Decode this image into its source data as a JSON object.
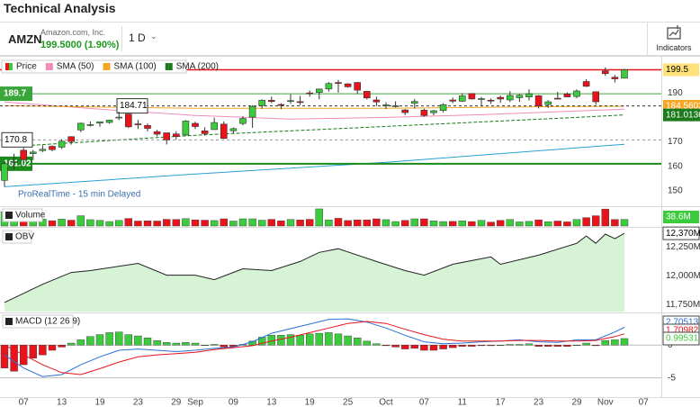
{
  "page": {
    "title": "Technical Analysis",
    "symbol": "AMZN",
    "company": "Amazon.com, Inc.",
    "price": "199.5000 (1.90%)",
    "interval": "1 D",
    "indicators_button": "Indicators",
    "source_note": "ProRealTime - 15 min Delayed"
  },
  "chart_data": [
    {
      "type": "candlestick",
      "categories": [
        null,
        null,
        "07",
        null,
        null,
        null,
        "13",
        null,
        null,
        null,
        "19",
        null,
        null,
        null,
        "23",
        null,
        null,
        null,
        "29",
        null,
        "Sep",
        null,
        null,
        null,
        "09",
        null,
        null,
        null,
        "13",
        null,
        null,
        null,
        "19",
        null,
        null,
        null,
        "25",
        null,
        null,
        null,
        "Oct",
        null,
        null,
        null,
        "07",
        null,
        null,
        null,
        "11",
        null,
        null,
        null,
        "17",
        null,
        null,
        null,
        "23",
        null,
        null,
        null,
        "29",
        null,
        null,
        "Nov",
        null,
        null,
        null,
        "07"
      ],
      "candles": {
        "name": "Price",
        "up_color": "#3ccb3c",
        "down_color": "#e8141b",
        "open": [
          154.21,
          161.71,
          166.55,
          165.17,
          166.4,
          168.14,
          167.81,
          172.11,
          174.86,
          177.04,
          177.64,
          177.92,
          179.92,
          181.38,
          177.34,
          176.7,
          174.15,
          173.69,
          173.22,
          172.78,
          177.55,
          174.48,
          175.0,
          177.24,
          174.53,
          177.49,
          180.1,
          184.8,
          187.0,
          185.29,
          186.85,
          186.45,
          190.04,
          190.23,
          191.64,
          194.27,
          193.75,
          194.31,
          190.68,
          187.14,
          184.9,
          184.44,
          183.05,
          185.75,
          182.95,
          181.92,
          182.82,
          187.13,
          186.63,
          189.78,
          187.63,
          187.05,
          188.22,
          187.15,
          188.05,
          188.35,
          188.85,
          185.25,
          187.85,
          189.57,
          188.58,
          194.7,
          190.51,
          199.0,
          196.45,
          196.04,
          null,
          null
        ],
        "high": [
          162.04,
          165.08,
          167.58,
          166.69,
          168.55,
          168.55,
          171.04,
          172.28,
          177.91,
          178.34,
          178.3,
          179.01,
          182.39,
          181.47,
          178.97,
          177.47,
          174.89,
          173.69,
          174.29,
          178.9,
          178.26,
          175.98,
          179.88,
          178.38,
          175.85,
          180.5,
          184.99,
          187.41,
          188.5,
          185.81,
          189.45,
          188.8,
          190.99,
          191.84,
          194.45,
          195.37,
          193.95,
          194.53,
          190.9,
          188.49,
          186.19,
          186.6,
          183.44,
          187.6,
          183.6,
          183.09,
          185.85,
          188.13,
          189.93,
          189.83,
          188.41,
          187.78,
          188.94,
          190.74,
          189.46,
          191.52,
          189.16,
          187.11,
          190.45,
          190.21,
          191.46,
          195.61,
          190.6,
          200.5,
          197.33,
          199.82,
          null,
          null
        ],
        "low": [
          151.61,
          158.54,
          161.43,
          162.55,
          165.85,
          166.11,
          167.1,
          168.86,
          173.99,
          176.26,
          176.16,
          177.43,
          178.89,
          175.68,
          175.24,
          174.3,
          172.25,
          168.92,
          170.81,
          172.6,
          175.26,
          172.54,
          175.0,
          171.16,
          173.51,
          176.79,
          175.73,
          183.54,
          185.91,
          183.36,
          185.53,
          185.06,
          188.47,
          187.41,
          190.57,
          190.13,
          192.16,
          189.54,
          187.34,
          184.65,
          183.45,
          184.04,
          180.88,
          183.6,
          180.25,
          180.92,
          182.05,
          185.83,
          186.3,
          187.36,
          184.58,
          185.61,
          186.0,
          186.28,
          186.4,
          186.98,
          183.69,
          183.86,
          187.53,
          188.21,
          187.82,
          192.42,
          185.23,
          197.02,
          194.31,
          195.99,
          null,
          null
        ],
        "close": [
          161.02,
          161.93,
          162.77,
          165.8,
          166.94,
          166.8,
          170.23,
          170.1,
          177.59,
          177.06,
          178.22,
          178.88,
          180.11,
          176.13,
          177.04,
          175.5,
          173.12,
          170.8,
          172.12,
          178.5,
          176.25,
          173.33,
          177.89,
          171.39,
          175.4,
          179.55,
          184.52,
          187.0,
          186.49,
          184.89,
          186.88,
          186.43,
          189.87,
          191.6,
          193.88,
          193.96,
          192.53,
          191.16,
          187.97,
          186.33,
          185.13,
          184.76,
          181.96,
          186.51,
          180.8,
          182.72,
          185.17,
          186.65,
          188.82,
          187.54,
          187.69,
          186.89,
          187.53,
          188.99,
          189.07,
          189.7,
          184.71,
          186.38,
          187.83,
          188.39,
          190.83,
          192.73,
          186.4,
          197.93,
          195.78,
          199.5,
          null,
          null
        ]
      },
      "lines": [
        {
          "name": "SMA (50)",
          "color": "#f08ab8",
          "x": [
            0,
            10,
            20,
            30,
            40,
            50,
            60,
            65
          ],
          "values": [
            186.3,
            183.4,
            180.8,
            179.3,
            180.0,
            181.1,
            182.6,
            183.4
          ]
        },
        {
          "name": "SMA (100)",
          "color": "#f5a623",
          "tag": true,
          "x": [
            0,
            20,
            40,
            60,
            65
          ],
          "values": [
            184.8,
            183.7,
            183.7,
            184.5,
            184.5602
          ]
        },
        {
          "name": "SMA (200)",
          "color": "#1b7a1b",
          "dashed": true,
          "tag": true,
          "x": [
            0,
            20,
            40,
            60,
            65
          ],
          "values": [
            167.9,
            172.7,
            176.3,
            180.0,
            181.0136
          ]
        },
        {
          "color": "#2a9fd6",
          "x": [
            0,
            20,
            40,
            65
          ],
          "values": [
            151.6,
            156.8,
            161.6,
            169.0
          ]
        }
      ],
      "levels": [
        {
          "value": 199.5,
          "color": "#e8141b",
          "width": 1.5,
          "tag": "right",
          "tag_color": "#ffe27a"
        },
        {
          "value": 189.7,
          "color": "#3aa63a",
          "width": 1,
          "tag": "left"
        },
        {
          "value": 184.71,
          "color": "#333333",
          "width": 1,
          "dashed": true,
          "tag": "box"
        },
        {
          "value": 170.8,
          "color": "#999999",
          "width": 1,
          "dashed": true,
          "tag": "box-left"
        },
        {
          "value": 161.02,
          "color": "#1a8a1a",
          "width": 2,
          "tag": "left"
        }
      ],
      "ylim": [
        144,
        203
      ],
      "yticks": [
        150,
        160,
        170,
        190
      ]
    },
    {
      "type": "bar",
      "title": "Volume",
      "up_color": "#3ccb3c",
      "down_color": "#e8141b",
      "values": [
        83,
        59,
        41,
        38,
        40,
        31,
        40,
        34,
        60,
        37,
        33,
        26,
        33,
        44,
        29,
        30,
        29,
        39,
        38,
        43,
        36,
        34,
        32,
        42,
        29,
        42,
        42,
        34,
        39,
        30,
        38,
        35,
        39,
        100,
        36,
        45,
        32,
        36,
        36,
        42,
        37,
        26,
        33,
        42,
        42,
        30,
        26,
        27,
        30,
        26,
        33,
        23,
        33,
        38,
        24,
        27,
        36,
        25,
        29,
        24,
        38,
        49,
        60,
        99,
        38,
        38.6,
        null,
        null
      ],
      "value_labels": [
        null,
        null,
        null,
        null,
        null,
        null,
        null,
        null,
        null,
        null,
        null,
        null,
        null,
        null,
        null,
        null,
        null,
        null,
        null,
        null,
        null,
        null,
        null,
        null,
        null,
        null,
        null,
        null,
        null,
        null,
        null,
        null,
        null,
        null,
        null,
        null,
        null,
        null,
        null,
        null,
        null,
        null,
        null,
        null,
        null,
        null,
        null,
        null,
        null,
        null,
        null,
        null,
        null,
        null,
        null,
        null,
        null,
        null,
        null,
        null,
        null,
        null,
        null,
        null,
        null,
        "38.6M",
        null,
        null
      ],
      "ylim": [
        0,
        105
      ]
    },
    {
      "type": "area",
      "title": "OBV",
      "color": "#222222",
      "fill": "#d6f3d6",
      "x": [
        0,
        2,
        4,
        7,
        9,
        14,
        17,
        20,
        22,
        25,
        28,
        31,
        33,
        35,
        39,
        42,
        44,
        47,
        51,
        52,
        56,
        60,
        61,
        62,
        63,
        64,
        65
      ],
      "values": [
        11769,
        11848,
        11927,
        12030,
        12046,
        12109,
        12006,
        12006,
        11967,
        12062,
        12046,
        12125,
        12204,
        12236,
        12125,
        12046,
        12006,
        12101,
        12165,
        12101,
        12180,
        12283,
        12347,
        12283,
        12363,
        12323,
        12370
      ],
      "value_labels": [
        null,
        null,
        null,
        null,
        null,
        null,
        null,
        null,
        null,
        null,
        null,
        null,
        null,
        null,
        null,
        null,
        null,
        null,
        null,
        null,
        null,
        null,
        null,
        null,
        null,
        null,
        "12,370M"
      ],
      "ylim": [
        11690,
        12410
      ],
      "yticks": [
        {
          "value": 11750,
          "label": "11,750M"
        },
        {
          "value": 12000,
          "label": "12,000M"
        },
        {
          "value": 12250,
          "label": "12,250M"
        }
      ]
    },
    {
      "type": "combo",
      "title": "MACD (12 26 9)",
      "grid": true,
      "histogram": {
        "up_color": "#3ccb3c",
        "down_color": "#e8141b",
        "values": [
          -3.5,
          -4.0,
          -3.0,
          -2.0,
          -1.5,
          -0.8,
          -0.3,
          0.3,
          0.8,
          1.3,
          1.6,
          1.9,
          2.0,
          1.6,
          1.4,
          1.1,
          0.7,
          0.4,
          0.3,
          0.4,
          0.3,
          0.0,
          0.1,
          -0.3,
          -0.2,
          0.1,
          0.6,
          1.2,
          1.5,
          1.5,
          1.6,
          1.5,
          1.7,
          1.8,
          1.9,
          1.7,
          1.4,
          1.1,
          0.6,
          0.2,
          -0.1,
          -0.3,
          -0.6,
          -0.5,
          -0.8,
          -0.8,
          -0.6,
          -0.4,
          -0.2,
          -0.2,
          -0.1,
          -0.1,
          0.0,
          0.1,
          0.1,
          0.2,
          -0.2,
          -0.2,
          -0.2,
          -0.2,
          0.0,
          0.3,
          -0.1,
          0.7,
          0.8,
          0.99531,
          null,
          null
        ]
      },
      "series": [
        {
          "color": "#2a6fd6",
          "x": [
            0,
            2,
            4,
            6,
            8,
            10,
            12,
            14,
            16,
            18,
            20,
            22,
            24,
            26,
            28,
            30,
            32,
            34,
            36,
            38,
            40,
            42,
            44,
            46,
            48,
            50,
            52,
            54,
            56,
            58,
            60,
            62,
            64,
            65
          ],
          "values": [
            -1.5,
            -3.5,
            -4.8,
            -4.5,
            -3.0,
            -1.8,
            -0.8,
            -0.6,
            -0.8,
            -1.0,
            -0.8,
            -0.5,
            -0.3,
            0.5,
            1.8,
            2.5,
            3.2,
            3.9,
            4.0,
            3.5,
            2.6,
            1.5,
            0.5,
            0.2,
            0.3,
            0.5,
            0.6,
            0.8,
            0.5,
            0.4,
            0.8,
            0.8,
            2.0,
            2.70513
          ]
        },
        {
          "color": "#e8141b",
          "x": [
            0,
            2,
            4,
            6,
            8,
            10,
            12,
            14,
            16,
            18,
            20,
            22,
            24,
            26,
            28,
            30,
            32,
            34,
            36,
            38,
            40,
            42,
            44,
            46,
            48,
            50,
            52,
            54,
            56,
            58,
            60,
            62,
            64,
            65
          ],
          "values": [
            0.0,
            -1.5,
            -3.0,
            -4.2,
            -4.5,
            -3.6,
            -2.6,
            -1.8,
            -1.5,
            -1.3,
            -1.1,
            -0.7,
            -0.4,
            -0.1,
            0.6,
            1.2,
            1.9,
            2.6,
            3.3,
            3.6,
            3.3,
            2.4,
            1.6,
            0.9,
            0.6,
            0.6,
            0.6,
            0.7,
            0.7,
            0.6,
            0.6,
            0.7,
            1.3,
            1.70982
          ]
        }
      ],
      "ylim": [
        -7.8,
        4.7
      ],
      "yticks": [
        0,
        -5
      ]
    }
  ]
}
